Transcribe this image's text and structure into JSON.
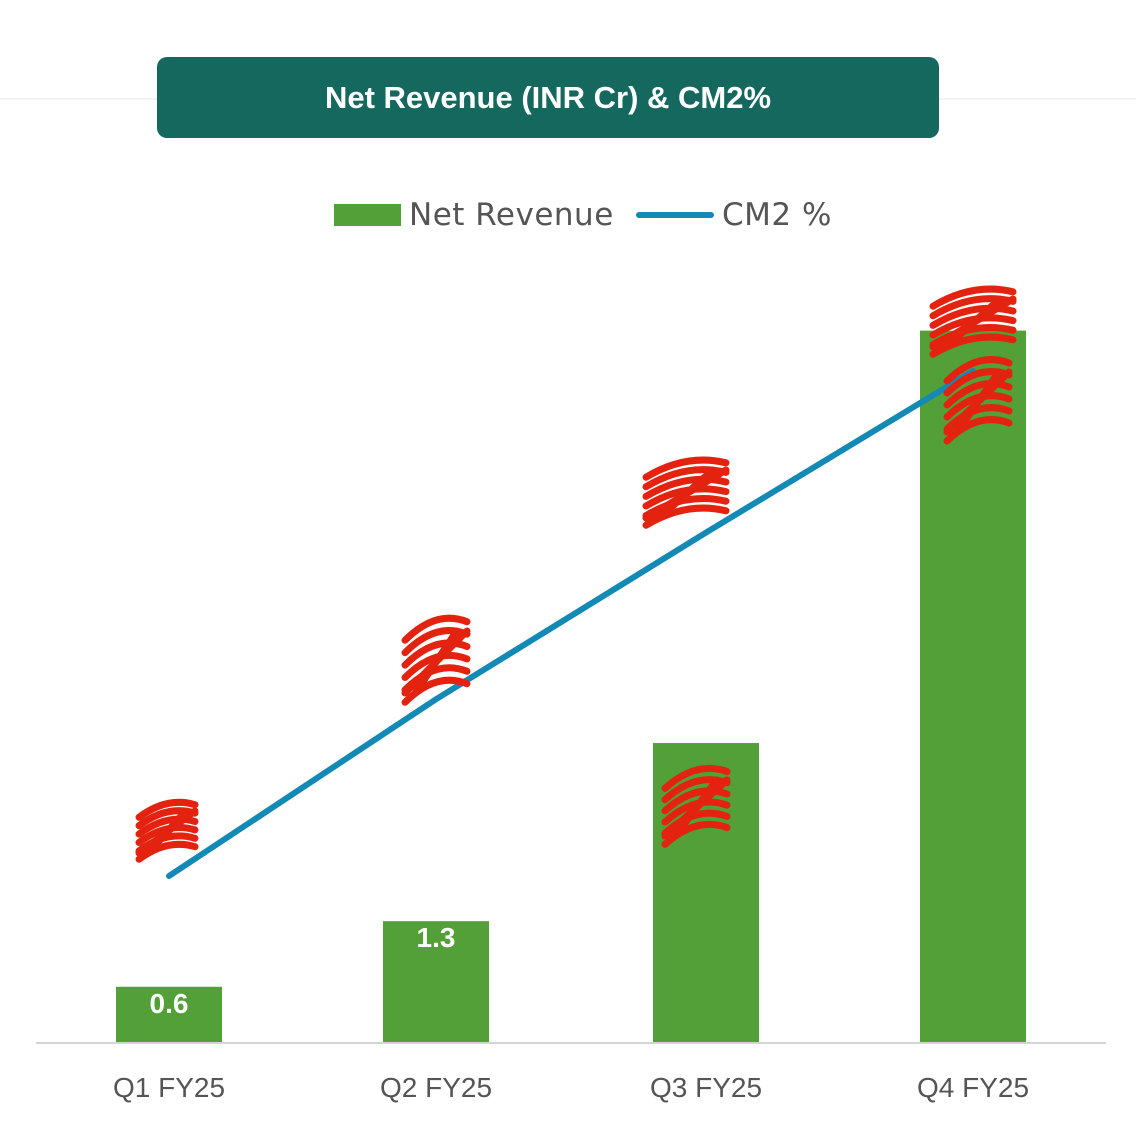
{
  "title": "Net Revenue (INR Cr) & CM2%",
  "legend": {
    "bar_label": "Net Revenue",
    "line_label": "CM2 %"
  },
  "colors": {
    "banner": "#15685e",
    "bar": "#539f38",
    "line": "#1389b5",
    "axis": "#d4d4d4",
    "redaction": "#e3230f"
  },
  "chart_data": {
    "type": "bar",
    "title": "Net Revenue (INR Cr) & CM2%",
    "categories": [
      "Q1 FY25",
      "Q2 FY25",
      "Q3 FY25",
      "Q4 FY25"
    ],
    "series": [
      {
        "name": "Net Revenue",
        "type": "bar",
        "values": [
          0.6,
          1.3,
          3.2,
          7.6
        ],
        "data_labels": [
          "0.6",
          "1.3",
          "",
          ""
        ]
      },
      {
        "name": "CM2 %",
        "type": "line",
        "values": [
          null,
          null,
          null,
          null
        ],
        "relative_position": [
          0.0,
          0.35,
          0.68,
          1.0
        ]
      }
    ],
    "redacted_labels": [
      "Q1 FY25 CM2 %",
      "Q2 FY25 CM2 %",
      "Q3 FY25 CM2 %",
      "Q4 FY25 CM2 %",
      "Q3 FY25 Net Revenue",
      "Q4 FY25 Net Revenue"
    ],
    "legend_position": "top-center",
    "grid": false,
    "xlabel": "",
    "ylabel": ""
  }
}
